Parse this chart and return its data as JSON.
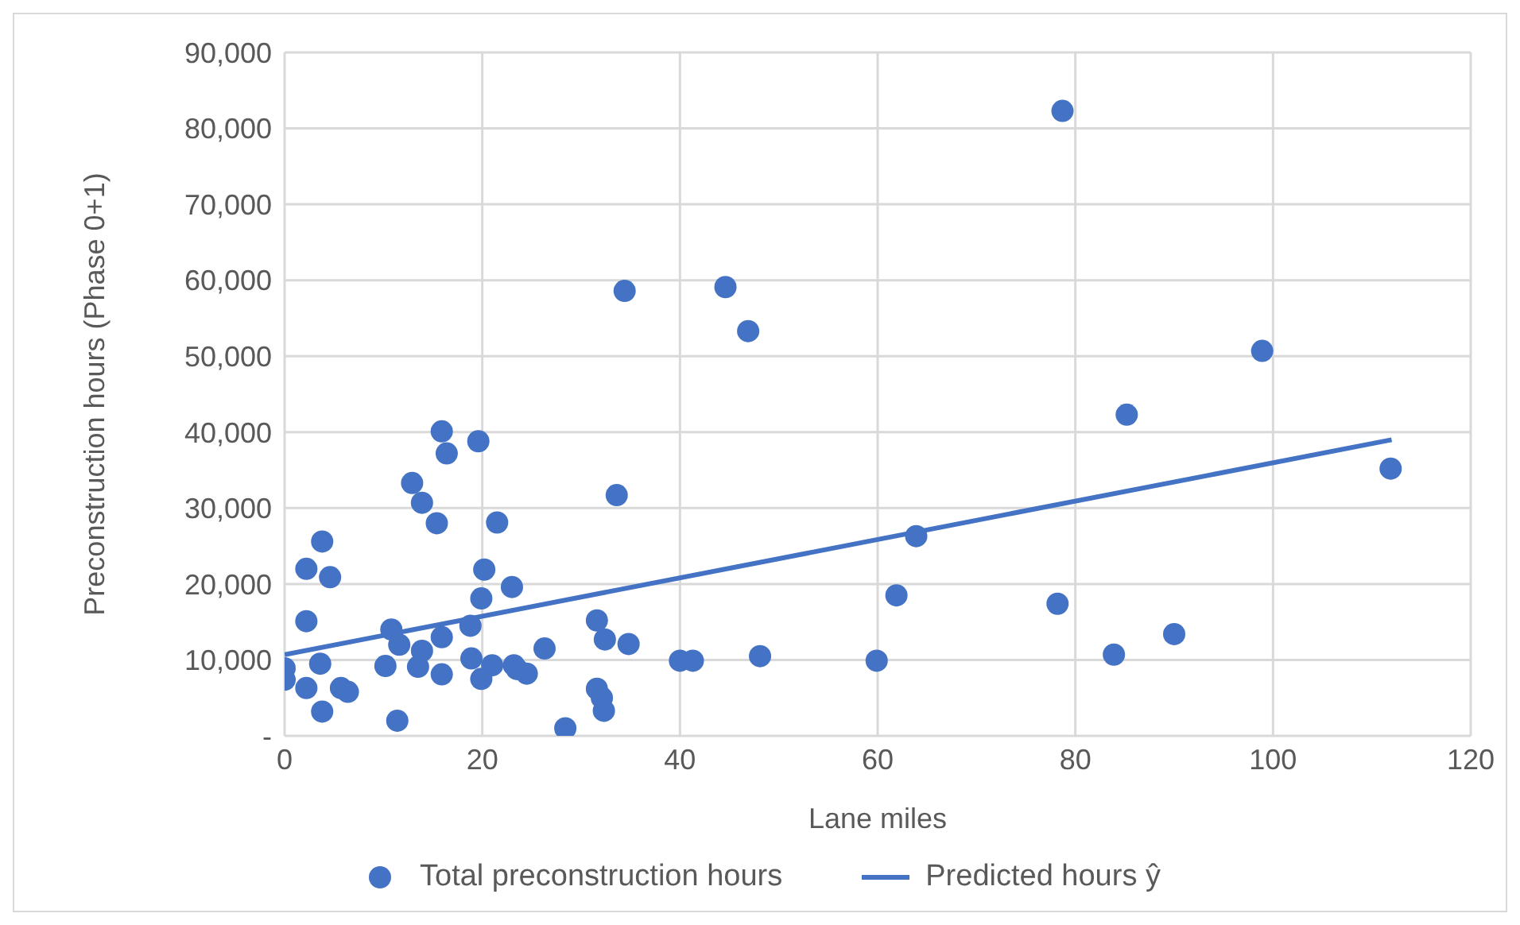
{
  "chart_data": {
    "type": "scatter",
    "xlabel": "Lane miles",
    "ylabel": "Preconstruction hours (Phase 0+1)",
    "xlim": [
      0,
      120
    ],
    "xticks": [
      0,
      20,
      40,
      60,
      80,
      100,
      120
    ],
    "ylim": [
      0,
      90000
    ],
    "yticks": [
      {
        "value": 0,
        "label": "-"
      },
      {
        "value": 10000,
        "label": "10,000"
      },
      {
        "value": 20000,
        "label": "20,000"
      },
      {
        "value": 30000,
        "label": "30,000"
      },
      {
        "value": 40000,
        "label": "40,000"
      },
      {
        "value": 50000,
        "label": "50,000"
      },
      {
        "value": 60000,
        "label": "60,000"
      },
      {
        "value": 70000,
        "label": "70,000"
      },
      {
        "value": 80000,
        "label": "80,000"
      },
      {
        "value": 90000,
        "label": "90,000"
      }
    ],
    "grid": true,
    "legend": "bottom",
    "series": [
      {
        "name": "Total preconstruction hours",
        "color": "#4472c4",
        "marker": "circle",
        "x": [
          15.9,
          16.4,
          19.6,
          12.9,
          13.9,
          15.4,
          21.5,
          3.8,
          2.2,
          4.6,
          20.2,
          23.0,
          19.9,
          2.2,
          18.8,
          10.8,
          11.6,
          15.9,
          26.3,
          13.9,
          13.5,
          10.2,
          3.6,
          18.9,
          21.0,
          23.2,
          24.5,
          15.9,
          19.9,
          0,
          0,
          2.2,
          5.7,
          6.4,
          3.8,
          11.4,
          28.4,
          34.4,
          44.6,
          46.9,
          33.6,
          31.6,
          32.4,
          34.8,
          40.0,
          41.3,
          48.1,
          31.6,
          32.1,
          32.3,
          23.5,
          78.7,
          98.9,
          85.2,
          111.9,
          63.9,
          61.9,
          78.2,
          90.0,
          83.9,
          59.9
        ],
        "values": [
          40100,
          37200,
          38800,
          33300,
          30700,
          28000,
          28100,
          25600,
          22000,
          20900,
          21900,
          19600,
          18100,
          15100,
          14500,
          14000,
          12000,
          13000,
          11500,
          11200,
          9100,
          9200,
          9500,
          10200,
          9300,
          9300,
          8200,
          8100,
          7500,
          8900,
          7400,
          6300,
          6300,
          5800,
          3200,
          2000,
          1000,
          58600,
          59100,
          53300,
          31700,
          15200,
          12700,
          12100,
          9900,
          9900,
          10500,
          6200,
          5000,
          3300,
          8800,
          82300,
          50700,
          42300,
          35200,
          26300,
          18500,
          17400,
          13400,
          10700,
          9900
        ]
      },
      {
        "name": "Predicted hours ŷ",
        "type": "line",
        "color": "#4472c4",
        "marker": "none",
        "line_style": "solid",
        "x": [
          0,
          112
        ],
        "values": [
          10700,
          39000
        ]
      }
    ]
  }
}
